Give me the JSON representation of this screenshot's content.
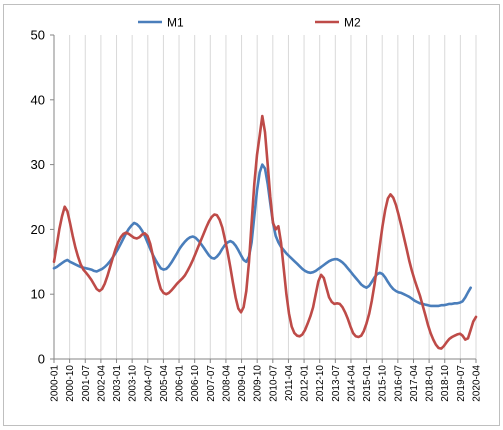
{
  "chart_data": {
    "type": "line",
    "title": "",
    "xlabel": "",
    "ylabel": "",
    "ylim": [
      0,
      50
    ],
    "yticks": [
      "0",
      "10",
      "20",
      "30",
      "40",
      "50"
    ],
    "grid": "vertical",
    "legend": "top",
    "xtick_labels": [
      "2000-01",
      "2000-10",
      "2001-07",
      "2002-04",
      "2003-01",
      "2003-10",
      "2004-07",
      "2005-04",
      "2006-01",
      "2006-10",
      "2007-07",
      "2008-04",
      "2009-01",
      "2009-10",
      "2010-07",
      "2011-04",
      "2012-01",
      "2012-10",
      "2013-07",
      "2014-04",
      "2015-01",
      "2015-10",
      "2016-07",
      "2017-04",
      "2018-01",
      "2018-10",
      "2019-07",
      "2020-04"
    ],
    "series": [
      {
        "name": "M1",
        "color": "#4a7ebb",
        "values": [
          14.0,
          14.2,
          14.5,
          14.8,
          15.1,
          15.3,
          15.0,
          14.8,
          14.6,
          14.4,
          14.2,
          14.1,
          14.0,
          13.9,
          13.8,
          13.6,
          13.5,
          13.7,
          13.9,
          14.2,
          14.6,
          15.1,
          15.7,
          16.3,
          17.0,
          17.8,
          18.6,
          19.4,
          20.1,
          20.6,
          21.0,
          20.8,
          20.4,
          19.8,
          19.0,
          18.0,
          17.0,
          16.1,
          15.3,
          14.6,
          14.0,
          13.8,
          13.9,
          14.3,
          14.9,
          15.6,
          16.3,
          17.0,
          17.6,
          18.1,
          18.5,
          18.8,
          18.9,
          18.7,
          18.3,
          17.8,
          17.2,
          16.6,
          16.0,
          15.6,
          15.5,
          15.8,
          16.3,
          17.0,
          17.6,
          18.0,
          18.2,
          18.0,
          17.5,
          16.8,
          16.0,
          15.3,
          15.0,
          15.8,
          18.0,
          22.0,
          26.0,
          28.8,
          30.0,
          29.4,
          27.0,
          24.0,
          21.0,
          19.0,
          18.0,
          17.3,
          16.8,
          16.3,
          15.9,
          15.5,
          15.1,
          14.7,
          14.3,
          13.9,
          13.6,
          13.4,
          13.3,
          13.4,
          13.6,
          13.9,
          14.2,
          14.5,
          14.8,
          15.1,
          15.3,
          15.4,
          15.4,
          15.2,
          14.9,
          14.5,
          14.0,
          13.5,
          13.0,
          12.5,
          12.0,
          11.5,
          11.2,
          11.0,
          11.3,
          11.9,
          12.6,
          13.1,
          13.3,
          13.1,
          12.6,
          11.9,
          11.3,
          10.8,
          10.5,
          10.3,
          10.2,
          10.0,
          9.8,
          9.6,
          9.3,
          9.0,
          8.8,
          8.6,
          8.5,
          8.4,
          8.3,
          8.2,
          8.2,
          8.2,
          8.2,
          8.3,
          8.3,
          8.4,
          8.5,
          8.5,
          8.6,
          8.6,
          8.7,
          8.9,
          9.5,
          10.3,
          11.0
        ]
      },
      {
        "name": "M2",
        "color": "#be4b48",
        "values": [
          15.0,
          17.5,
          20.0,
          22.0,
          23.5,
          22.8,
          21.0,
          19.0,
          17.2,
          15.8,
          14.6,
          13.8,
          13.3,
          12.8,
          12.2,
          11.5,
          10.8,
          10.5,
          10.8,
          11.6,
          12.8,
          14.2,
          15.6,
          16.9,
          18.0,
          18.8,
          19.3,
          19.5,
          19.3,
          19.0,
          18.7,
          18.6,
          18.8,
          19.2,
          19.4,
          19.0,
          17.8,
          16.0,
          14.0,
          12.2,
          10.8,
          10.2,
          10.0,
          10.2,
          10.6,
          11.1,
          11.6,
          12.0,
          12.4,
          12.9,
          13.6,
          14.4,
          15.3,
          16.3,
          17.3,
          18.3,
          19.3,
          20.3,
          21.2,
          21.9,
          22.3,
          22.2,
          21.5,
          20.3,
          18.5,
          16.5,
          14.2,
          11.8,
          9.5,
          7.8,
          7.2,
          8.0,
          10.5,
          15.0,
          21.0,
          27.0,
          31.5,
          34.5,
          37.5,
          35.0,
          30.0,
          25.0,
          21.0,
          20.0,
          20.5,
          18.0,
          14.0,
          10.0,
          7.0,
          5.0,
          4.0,
          3.6,
          3.5,
          3.8,
          4.5,
          5.5,
          6.6,
          8.0,
          10.0,
          12.0,
          13.0,
          12.5,
          11.0,
          9.5,
          8.8,
          8.5,
          8.6,
          8.5,
          8.0,
          7.2,
          6.2,
          5.0,
          4.0,
          3.5,
          3.4,
          3.6,
          4.3,
          5.5,
          7.0,
          9.0,
          11.5,
          14.5,
          17.5,
          20.5,
          23.0,
          24.8,
          25.4,
          24.9,
          23.8,
          22.3,
          20.6,
          18.8,
          17.0,
          15.2,
          13.6,
          12.2,
          11.0,
          9.8,
          8.3,
          6.8,
          5.3,
          4.0,
          3.0,
          2.2,
          1.7,
          1.6,
          2.0,
          2.6,
          3.1,
          3.4,
          3.6,
          3.8,
          3.9,
          3.6,
          3.0,
          3.2,
          4.5,
          5.8,
          6.5
        ]
      }
    ]
  }
}
